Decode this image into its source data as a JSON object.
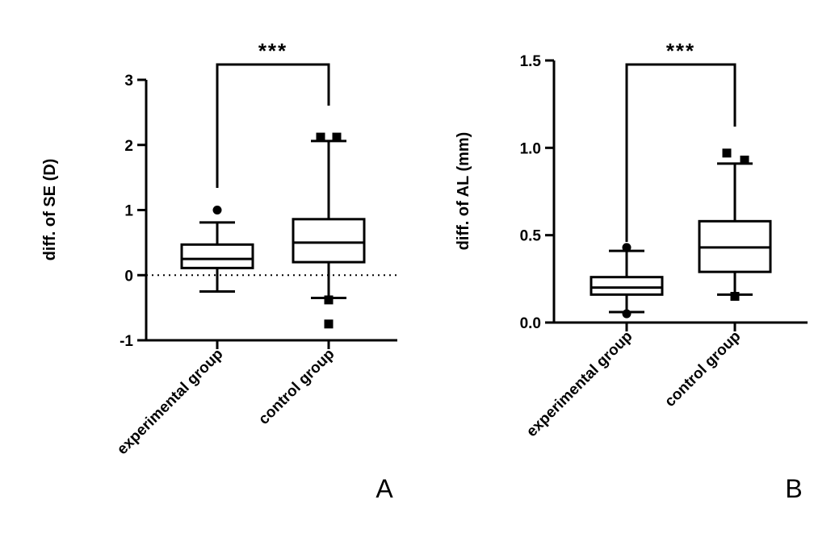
{
  "chart_data": [
    {
      "type": "box",
      "panel_label": "A",
      "ylabel": "diff. of SE (D)",
      "ylim": [
        -1,
        3
      ],
      "yticks": [
        -1,
        0,
        1,
        2,
        3
      ],
      "ytick_labels": [
        "-1",
        "0",
        "1",
        "2",
        "3"
      ],
      "reference_line": 0,
      "categories": [
        "experimental group",
        "control group"
      ],
      "boxes": [
        {
          "name": "experimental group",
          "whisker_low": -0.25,
          "q1": 0.11,
          "median": 0.25,
          "q3": 0.47,
          "whisker_high": 0.81,
          "outliers": [
            1.0
          ],
          "outlier_marker": "circle"
        },
        {
          "name": "control group",
          "whisker_low": -0.35,
          "q1": 0.2,
          "median": 0.5,
          "q3": 0.86,
          "whisker_high": 2.06,
          "outliers": [
            2.12,
            2.12,
            -0.38,
            -0.75
          ],
          "outlier_marker": "square"
        }
      ],
      "significance": {
        "label": "***",
        "between": [
          0,
          1
        ]
      }
    },
    {
      "type": "box",
      "panel_label": "B",
      "ylabel": "diff. of AL (mm)",
      "ylim": [
        0,
        1.5
      ],
      "yticks": [
        0,
        0.5,
        1.0,
        1.5
      ],
      "ytick_labels": [
        "0.0",
        "0.5",
        "1.0",
        "1.5"
      ],
      "categories": [
        "experimental group",
        "control group"
      ],
      "boxes": [
        {
          "name": "experimental group",
          "whisker_low": 0.06,
          "q1": 0.16,
          "median": 0.2,
          "q3": 0.26,
          "whisker_high": 0.41,
          "outliers": [
            0.43,
            0.05
          ],
          "outlier_marker": "circle"
        },
        {
          "name": "control group",
          "whisker_low": 0.16,
          "q1": 0.29,
          "median": 0.43,
          "q3": 0.58,
          "whisker_high": 0.91,
          "outliers": [
            0.97,
            0.93,
            0.15
          ],
          "outlier_marker": "square"
        }
      ],
      "significance": {
        "label": "***",
        "between": [
          0,
          1
        ]
      }
    }
  ]
}
